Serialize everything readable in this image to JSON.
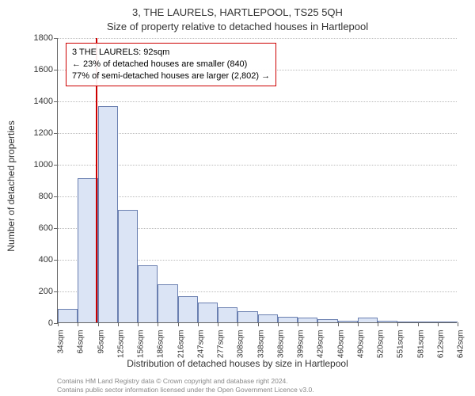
{
  "title_line1": "3, THE LAURELS, HARTLEPOOL, TS25 5QH",
  "title_line2": "Size of property relative to detached houses in Hartlepool",
  "ylabel": "Number of detached properties",
  "xlabel": "Distribution of detached houses by size in Hartlepool",
  "footer1": "Contains HM Land Registry data © Crown copyright and database right 2024.",
  "footer2": "Contains public sector information licensed under the Open Government Licence v3.0.",
  "chart": {
    "type": "histogram",
    "ylim": [
      0,
      1800
    ],
    "ytick_step": 200,
    "yticks": [
      0,
      200,
      400,
      600,
      800,
      1000,
      1200,
      1400,
      1600,
      1800
    ],
    "xtick_labels": [
      "34sqm",
      "64sqm",
      "95sqm",
      "125sqm",
      "156sqm",
      "186sqm",
      "216sqm",
      "247sqm",
      "277sqm",
      "308sqm",
      "338sqm",
      "368sqm",
      "399sqm",
      "429sqm",
      "460sqm",
      "490sqm",
      "520sqm",
      "551sqm",
      "581sqm",
      "612sqm",
      "642sqm"
    ],
    "values": [
      85,
      910,
      1365,
      710,
      360,
      240,
      165,
      125,
      95,
      70,
      50,
      35,
      28,
      20,
      12,
      30,
      8,
      5,
      3,
      2
    ],
    "bar_fill": "#dbe4f5",
    "bar_stroke": "#6a7fb0",
    "grid_color": "#bbbbbb",
    "axis_color": "#666666",
    "background": "#ffffff",
    "marker": {
      "value_sqm": 92,
      "range_start": 34,
      "range_end": 642,
      "line_color": "#cc0000"
    },
    "annotation": {
      "border_color": "#cc0000",
      "line1": "3 THE LAURELS: 92sqm",
      "line2": "← 23% of detached houses are smaller (840)",
      "line3": "77% of semi-detached houses are larger (2,802) →"
    }
  }
}
